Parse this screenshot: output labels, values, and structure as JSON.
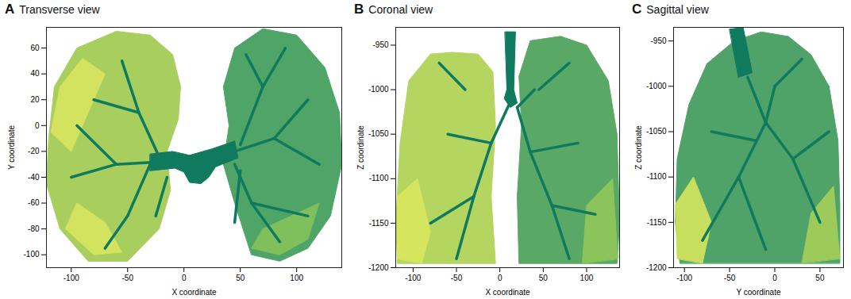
{
  "chart_data": [
    {
      "type": "tree",
      "panel_label": "A",
      "title": "Transverse view",
      "x_label": "X coordinate",
      "y_label": "Y coordinate",
      "xlim": [
        -122,
        140
      ],
      "xticks": [
        -100,
        -50,
        0,
        50,
        100
      ],
      "ylim": [
        -110,
        76
      ],
      "yticks": [
        60,
        40,
        20,
        0,
        -20,
        -40,
        -60,
        -80,
        -100
      ],
      "grid": false,
      "series": [
        {
          "type": "area",
          "color": "#a8cf5e",
          "values": [
            [
              -120,
              -10
            ],
            [
              -115,
              30
            ],
            [
              -95,
              60
            ],
            [
              -60,
              73
            ],
            [
              -30,
              70
            ],
            [
              -10,
              55
            ],
            [
              -3,
              30
            ],
            [
              -5,
              5
            ],
            [
              -15,
              -20
            ],
            [
              -12,
              -50
            ],
            [
              -22,
              -80
            ],
            [
              -50,
              -105
            ],
            [
              -85,
              -105
            ],
            [
              -110,
              -80
            ],
            [
              -122,
              -45
            ]
          ]
        },
        {
          "type": "area",
          "color": "#d3e35f",
          "values": [
            [
              -118,
              -5
            ],
            [
              -110,
              30
            ],
            [
              -90,
              52
            ],
            [
              -70,
              40
            ],
            [
              -85,
              10
            ],
            [
              -100,
              -20
            ]
          ]
        },
        {
          "type": "area",
          "color": "#d3e35f",
          "values": [
            [
              -105,
              -80
            ],
            [
              -80,
              -100
            ],
            [
              -55,
              -98
            ],
            [
              -70,
              -75
            ],
            [
              -95,
              -60
            ]
          ]
        },
        {
          "type": "area",
          "color": "#4fa468",
          "values": [
            [
              45,
              -60
            ],
            [
              35,
              -30
            ],
            [
              40,
              0
            ],
            [
              35,
              30
            ],
            [
              45,
              60
            ],
            [
              70,
              75
            ],
            [
              100,
              70
            ],
            [
              125,
              45
            ],
            [
              138,
              10
            ],
            [
              140,
              -30
            ],
            [
              130,
              -70
            ],
            [
              110,
              -95
            ],
            [
              85,
              -105
            ],
            [
              60,
              -100
            ]
          ]
        },
        {
          "type": "area",
          "color": "#7fbf5c",
          "values": [
            [
              60,
              -95
            ],
            [
              85,
              -100
            ],
            [
              110,
              -88
            ],
            [
              120,
              -60
            ],
            [
              95,
              -70
            ],
            [
              70,
              -80
            ]
          ]
        },
        {
          "type": "area",
          "color": "#0f7a5e",
          "values": [
            [
              -30,
              -22
            ],
            [
              -10,
              -20
            ],
            [
              5,
              -23
            ],
            [
              25,
              -18
            ],
            [
              45,
              -12
            ],
            [
              48,
              -25
            ],
            [
              28,
              -32
            ],
            [
              22,
              -40
            ],
            [
              15,
              -45
            ],
            [
              5,
              -44
            ],
            [
              0,
              -36
            ],
            [
              -8,
              -33
            ],
            [
              -30,
              -35
            ]
          ]
        },
        {
          "type": "segment",
          "color": "#0f7a5e",
          "values": [
            [
              -20,
              -28,
              -60,
              -30
            ],
            [
              -20,
              -28,
              -40,
              10
            ],
            [
              -40,
              10,
              -55,
              50
            ],
            [
              -40,
              10,
              -80,
              20
            ],
            [
              -30,
              -30,
              -50,
              -70
            ],
            [
              -50,
              -70,
              -70,
              -95
            ],
            [
              -15,
              -40,
              -25,
              -70
            ],
            [
              -60,
              -30,
              -100,
              -40
            ],
            [
              -60,
              -30,
              -95,
              0
            ],
            [
              45,
              -20,
              80,
              -10
            ],
            [
              80,
              -10,
              110,
              20
            ],
            [
              80,
              -10,
              120,
              -30
            ],
            [
              50,
              -15,
              70,
              30
            ],
            [
              70,
              30,
              90,
              60
            ],
            [
              70,
              30,
              55,
              55
            ],
            [
              45,
              -30,
              60,
              -60
            ],
            [
              60,
              -60,
              85,
              -90
            ],
            [
              60,
              -60,
              110,
              -70
            ],
            [
              50,
              -35,
              45,
              -75
            ]
          ]
        }
      ]
    },
    {
      "type": "tree",
      "panel_label": "B",
      "title": "Coronal view",
      "x_label": "X coordinate",
      "y_label": "Z coordinate",
      "xlim": [
        -120,
        138
      ],
      "xticks": [
        -100,
        -50,
        0,
        50,
        100
      ],
      "ylim": [
        -1200,
        -930
      ],
      "yticks": [
        -950,
        -1000,
        -1050,
        -1100,
        -1150,
        -1200
      ],
      "grid": false,
      "series": [
        {
          "type": "area",
          "color": "#b4d560",
          "values": [
            [
              -118,
              -1195
            ],
            [
              -120,
              -1150
            ],
            [
              -115,
              -1060
            ],
            [
              -105,
              -990
            ],
            [
              -80,
              -960
            ],
            [
              -55,
              -958
            ],
            [
              -25,
              -960
            ],
            [
              -8,
              -980
            ],
            [
              -5,
              -1040
            ],
            [
              -10,
              -1120
            ],
            [
              -5,
              -1195
            ]
          ]
        },
        {
          "type": "area",
          "color": "#d6e55e",
          "values": [
            [
              -118,
              -1190
            ],
            [
              -118,
              -1120
            ],
            [
              -95,
              -1100
            ],
            [
              -80,
              -1160
            ],
            [
              -90,
              -1195
            ]
          ]
        },
        {
          "type": "area",
          "color": "#5aa866",
          "values": [
            [
              22,
              -1195
            ],
            [
              20,
              -1120
            ],
            [
              25,
              -1040
            ],
            [
              22,
              -985
            ],
            [
              35,
              -945
            ],
            [
              70,
              -940
            ],
            [
              100,
              -950
            ],
            [
              125,
              -990
            ],
            [
              135,
              -1050
            ],
            [
              138,
              -1150
            ],
            [
              135,
              -1195
            ]
          ]
        },
        {
          "type": "area",
          "color": "#8cc45c",
          "values": [
            [
              95,
              -1195
            ],
            [
              100,
              -1130
            ],
            [
              130,
              -1100
            ],
            [
              136,
              -1190
            ]
          ]
        },
        {
          "type": "area",
          "color": "#0f7a5e",
          "values": [
            [
              6,
              -935
            ],
            [
              18,
              -935
            ],
            [
              16,
              -1000
            ],
            [
              20,
              -1015
            ],
            [
              12,
              -1020
            ],
            [
              5,
              -1010
            ],
            [
              8,
              -1000
            ]
          ]
        },
        {
          "type": "segment",
          "color": "#0f7a5e",
          "values": [
            [
              10,
              -1018,
              -10,
              -1060
            ],
            [
              -10,
              -1060,
              -30,
              -1120
            ],
            [
              -30,
              -1120,
              -50,
              -1190
            ],
            [
              -10,
              -1060,
              -60,
              -1050
            ],
            [
              -30,
              -1120,
              -80,
              -1150
            ],
            [
              -40,
              -1000,
              -70,
              -970
            ],
            [
              20,
              -1020,
              35,
              -1070
            ],
            [
              35,
              -1070,
              60,
              -1130
            ],
            [
              60,
              -1130,
              80,
              -1190
            ],
            [
              35,
              -1070,
              90,
              -1060
            ],
            [
              60,
              -1130,
              110,
              -1140
            ],
            [
              45,
              -1000,
              80,
              -970
            ],
            [
              20,
              -1020,
              40,
              -1000
            ]
          ]
        }
      ]
    },
    {
      "type": "tree",
      "panel_label": "C",
      "title": "Sagittal view",
      "x_label": "Y coordinate",
      "y_label": "Z coordinate",
      "xlim": [
        -112,
        76
      ],
      "xticks": [
        -100,
        -50,
        0,
        50
      ],
      "ylim": [
        -1200,
        -935
      ],
      "yticks": [
        -950,
        -1000,
        -1050,
        -1100,
        -1150,
        -1200
      ],
      "grid": false,
      "series": [
        {
          "type": "area",
          "color": "#4fa268",
          "values": [
            [
              -105,
              -1195
            ],
            [
              -110,
              -1150
            ],
            [
              -108,
              -1080
            ],
            [
              -95,
              -1020
            ],
            [
              -75,
              -975
            ],
            [
              -45,
              -950
            ],
            [
              -15,
              -940
            ],
            [
              15,
              -945
            ],
            [
              40,
              -965
            ],
            [
              60,
              -1000
            ],
            [
              70,
              -1060
            ],
            [
              72,
              -1130
            ],
            [
              72,
              -1195
            ]
          ]
        },
        {
          "type": "area",
          "color": "#c8de5e",
          "values": [
            [
              -108,
              -1190
            ],
            [
              -110,
              -1130
            ],
            [
              -90,
              -1100
            ],
            [
              -70,
              -1150
            ],
            [
              -80,
              -1195
            ]
          ]
        },
        {
          "type": "area",
          "color": "#9ccb5c",
          "values": [
            [
              30,
              -1195
            ],
            [
              40,
              -1140
            ],
            [
              65,
              -1110
            ],
            [
              72,
              -1190
            ]
          ]
        },
        {
          "type": "area",
          "color": "#0f7a5e",
          "values": [
            [
              -50,
              -937
            ],
            [
              -35,
              -935
            ],
            [
              -25,
              -985
            ],
            [
              -40,
              -990
            ]
          ]
        },
        {
          "type": "segment",
          "color": "#0f7a5e",
          "values": [
            [
              -30,
              -990,
              -10,
              -1040
            ],
            [
              -10,
              -1040,
              -40,
              -1100
            ],
            [
              -40,
              -1100,
              -80,
              -1170
            ],
            [
              -10,
              -1040,
              20,
              -1080
            ],
            [
              20,
              -1080,
              50,
              -1150
            ],
            [
              -20,
              -1060,
              -70,
              -1050
            ],
            [
              -10,
              -1040,
              0,
              -1000
            ],
            [
              -40,
              -1100,
              -10,
              -1180
            ],
            [
              20,
              -1080,
              60,
              -1050
            ],
            [
              0,
              -1000,
              30,
              -970
            ]
          ]
        }
      ]
    }
  ]
}
